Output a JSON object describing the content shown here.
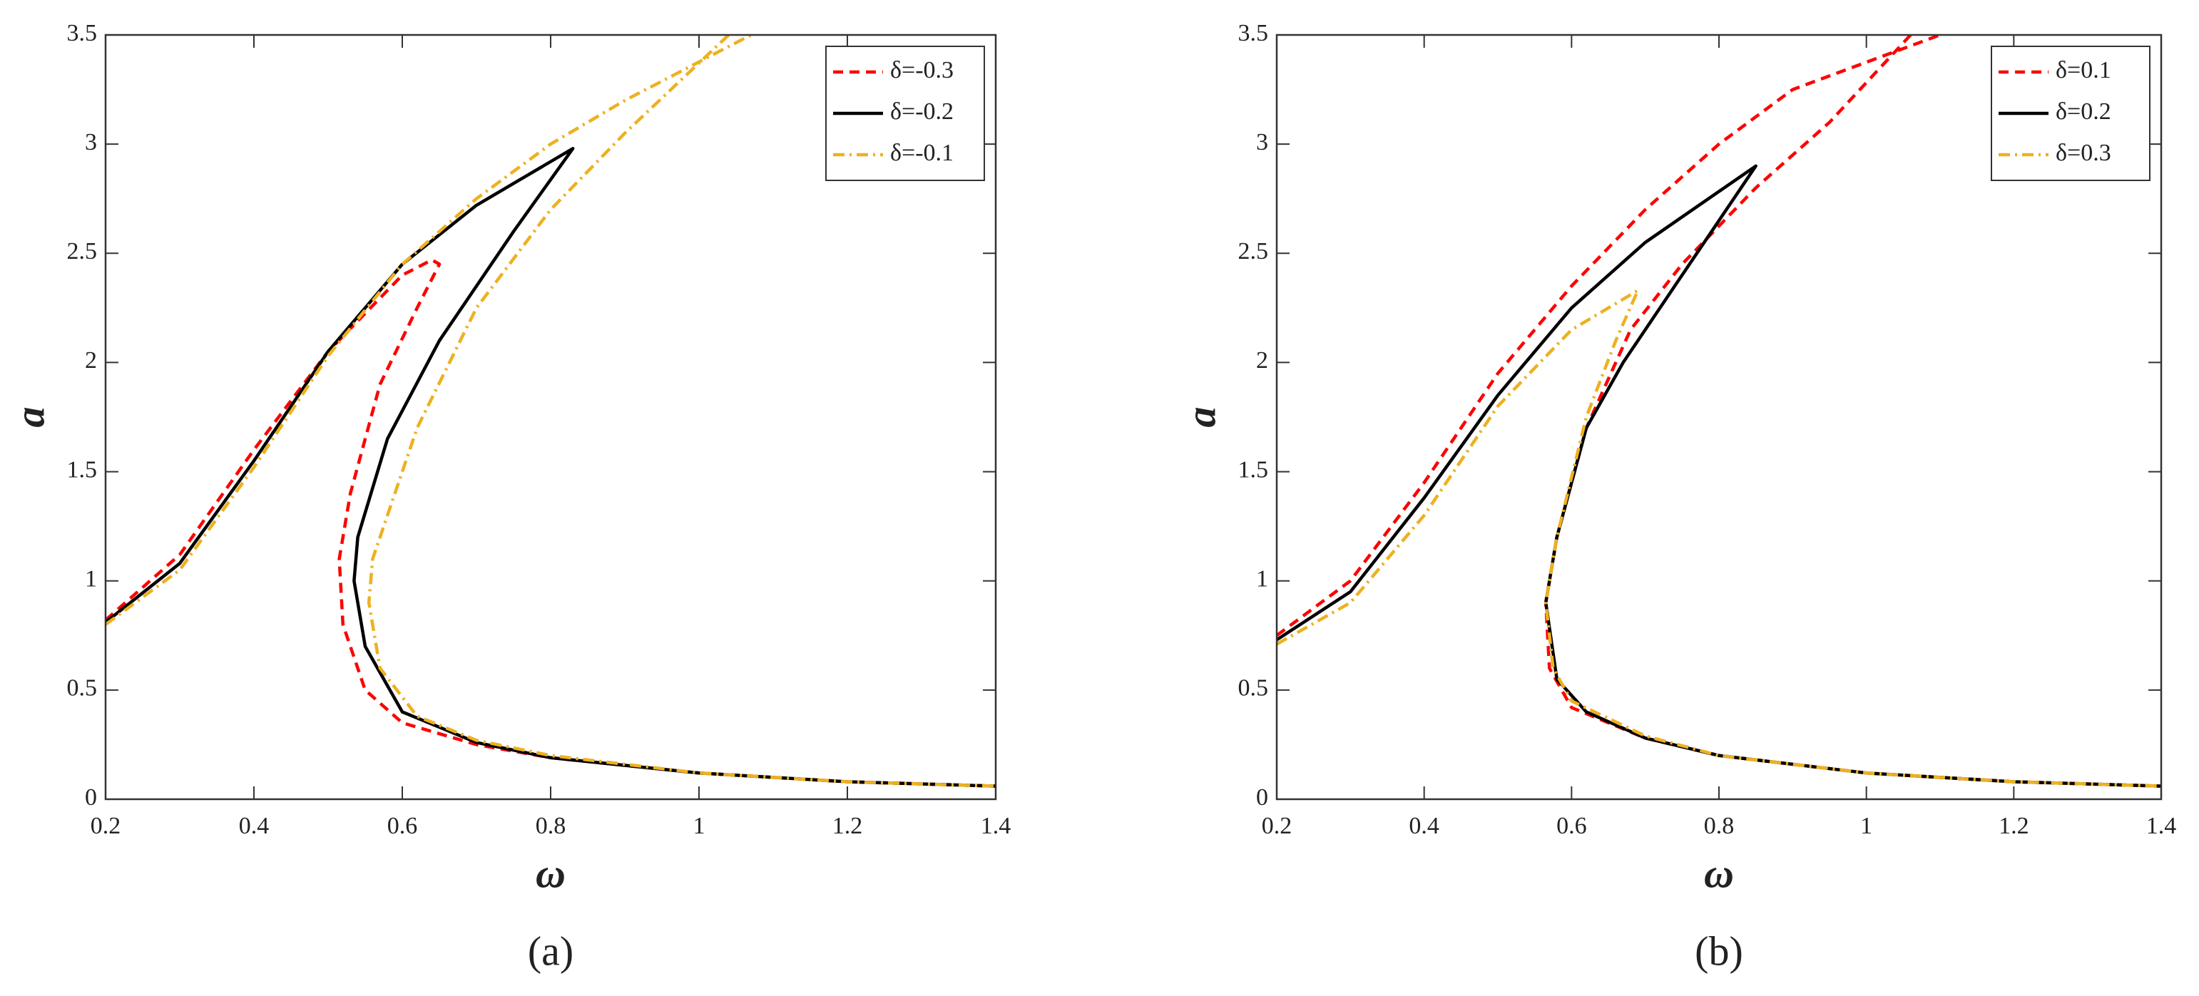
{
  "chart_data": [
    {
      "type": "line",
      "caption": "(a)",
      "xlabel": "ω",
      "ylabel": "a",
      "xlim": [
        0.2,
        1.4
      ],
      "ylim": [
        0,
        3.5
      ],
      "xticks": [
        0.2,
        0.4,
        0.6,
        0.8,
        1,
        1.2,
        1.4
      ],
      "yticks": [
        0,
        0.5,
        1,
        1.5,
        2,
        2.5,
        3,
        3.5
      ],
      "legend": "upper right",
      "series": [
        {
          "name": "δ=-0.3",
          "color": "#ff0000",
          "style": "dashed",
          "x": [
            0.2,
            0.3,
            0.4,
            0.5,
            0.6,
            0.64,
            0.65,
            0.62,
            0.57,
            0.53,
            0.515,
            0.52,
            0.55,
            0.6,
            0.7,
            0.8,
            1.0,
            1.2,
            1.4
          ],
          "values": [
            0.82,
            1.12,
            1.6,
            2.05,
            2.4,
            2.47,
            2.45,
            2.25,
            1.9,
            1.4,
            1.1,
            0.8,
            0.5,
            0.35,
            0.25,
            0.19,
            0.12,
            0.08,
            0.06
          ]
        },
        {
          "name": "δ=-0.2",
          "color": "#000000",
          "style": "solid",
          "x": [
            0.2,
            0.3,
            0.4,
            0.5,
            0.6,
            0.7,
            0.83,
            0.75,
            0.65,
            0.58,
            0.54,
            0.535,
            0.55,
            0.6,
            0.7,
            0.8,
            1.0,
            1.2,
            1.4
          ],
          "values": [
            0.81,
            1.08,
            1.55,
            2.05,
            2.45,
            2.72,
            2.98,
            2.6,
            2.1,
            1.65,
            1.2,
            1.0,
            0.7,
            0.4,
            0.26,
            0.19,
            0.12,
            0.08,
            0.06
          ]
        },
        {
          "name": "δ=-0.1",
          "color": "#edb120",
          "style": "dashdot",
          "x": [
            0.2,
            0.3,
            0.4,
            0.5,
            0.6,
            0.7,
            0.8,
            0.9,
            1.07,
            null,
            1.04,
            0.9,
            0.8,
            0.7,
            0.62,
            0.56,
            0.555,
            0.57,
            0.62,
            0.7,
            0.8,
            1.0,
            1.2,
            1.4
          ],
          "values": [
            0.8,
            1.05,
            1.52,
            2.03,
            2.45,
            2.75,
            3.0,
            3.2,
            3.5,
            null,
            3.5,
            3.05,
            2.7,
            2.25,
            1.7,
            1.1,
            0.9,
            0.6,
            0.38,
            0.27,
            0.2,
            0.12,
            0.08,
            0.06
          ]
        }
      ]
    },
    {
      "type": "line",
      "caption": "(b)",
      "xlabel": "ω",
      "ylabel": "a",
      "xlim": [
        0.2,
        1.4
      ],
      "ylim": [
        0,
        3.5
      ],
      "xticks": [
        0.2,
        0.4,
        0.6,
        0.8,
        1,
        1.2,
        1.4
      ],
      "yticks": [
        0,
        0.5,
        1,
        1.5,
        2,
        2.5,
        3,
        3.5
      ],
      "legend": "upper right",
      "series": [
        {
          "name": "δ=0.1",
          "color": "#ff0000",
          "style": "dashed",
          "x": [
            0.2,
            0.3,
            0.4,
            0.5,
            0.6,
            0.7,
            0.8,
            0.9,
            1.1,
            null,
            1.06,
            0.95,
            0.85,
            0.75,
            0.68,
            0.62,
            0.58,
            0.565,
            0.57,
            0.6,
            0.7,
            0.8,
            1.0,
            1.2,
            1.4
          ],
          "values": [
            0.75,
            1.0,
            1.45,
            1.95,
            2.35,
            2.7,
            3.0,
            3.25,
            3.5,
            null,
            3.5,
            3.1,
            2.8,
            2.45,
            2.15,
            1.7,
            1.2,
            0.9,
            0.6,
            0.42,
            0.28,
            0.2,
            0.12,
            0.08,
            0.06
          ]
        },
        {
          "name": "δ=0.2",
          "color": "#000000",
          "style": "solid",
          "x": [
            0.2,
            0.3,
            0.4,
            0.5,
            0.6,
            0.7,
            0.85,
            0.75,
            0.67,
            0.62,
            0.58,
            0.565,
            0.58,
            0.62,
            0.7,
            0.8,
            1.0,
            1.2,
            1.4
          ],
          "values": [
            0.73,
            0.95,
            1.38,
            1.85,
            2.25,
            2.55,
            2.9,
            2.4,
            2.0,
            1.7,
            1.2,
            0.9,
            0.55,
            0.4,
            0.28,
            0.2,
            0.12,
            0.08,
            0.06
          ]
        },
        {
          "name": "δ=0.3",
          "color": "#edb120",
          "style": "dashdot",
          "x": [
            0.2,
            0.3,
            0.4,
            0.5,
            0.6,
            0.69,
            0.66,
            0.62,
            0.58,
            0.565,
            0.575,
            0.6,
            0.7,
            0.8,
            1.0,
            1.2,
            1.4
          ],
          "values": [
            0.71,
            0.9,
            1.3,
            1.8,
            2.15,
            2.33,
            2.1,
            1.75,
            1.2,
            0.9,
            0.6,
            0.45,
            0.29,
            0.2,
            0.12,
            0.08,
            0.06
          ]
        }
      ]
    }
  ]
}
